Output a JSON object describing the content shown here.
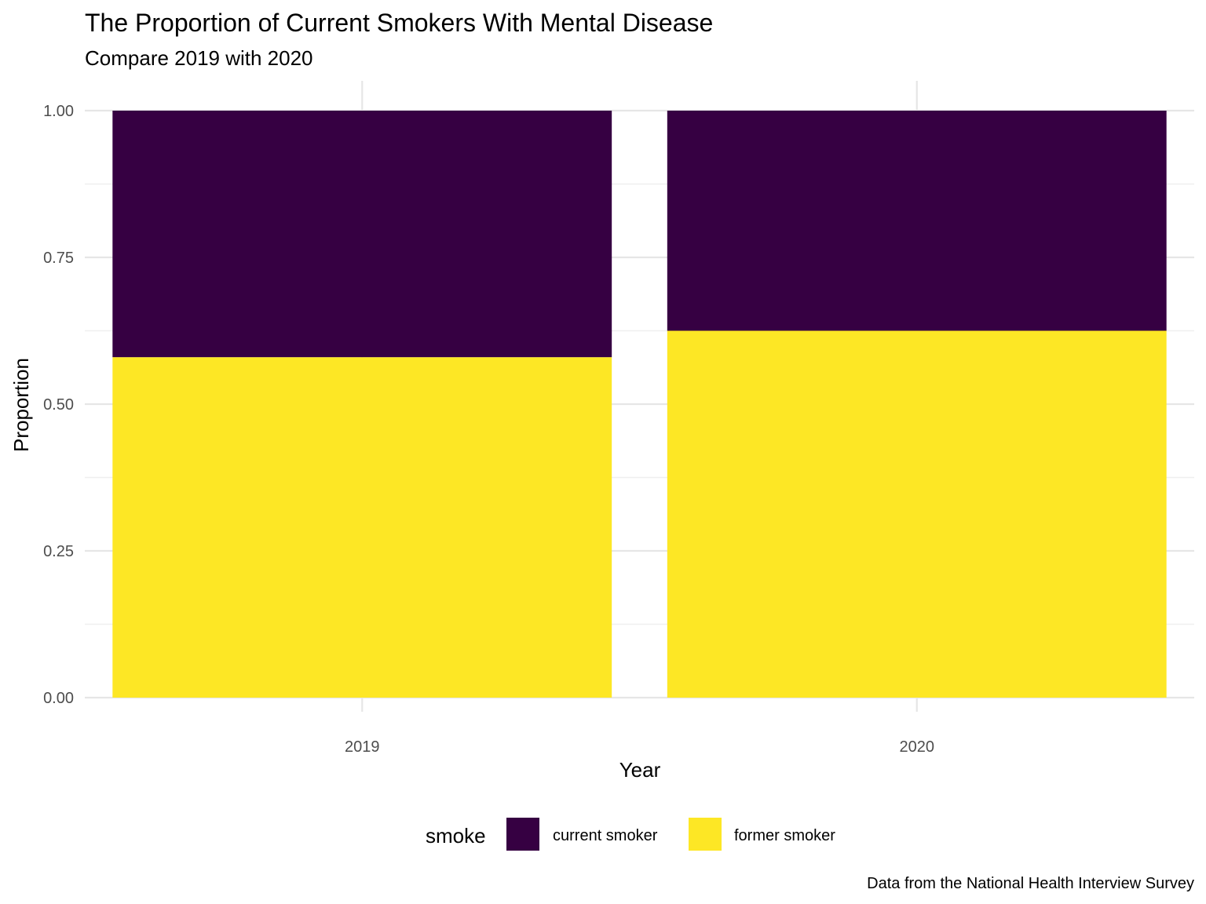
{
  "chart_data": {
    "type": "bar",
    "stacked": true,
    "normalized": true,
    "title": "The Proportion of Current Smokers With Mental Disease",
    "subtitle": "Compare 2019 with 2020",
    "xlabel": "Year",
    "ylabel": "Proportion",
    "caption": "Data from the National Health Interview Survey",
    "categories": [
      "2019",
      "2020"
    ],
    "series": [
      {
        "name": "current smoker",
        "color": "#360042",
        "values": [
          0.42,
          0.375
        ]
      },
      {
        "name": "former smoker",
        "color": "#FDE725",
        "values": [
          0.58,
          0.625
        ]
      }
    ],
    "ylim": [
      0,
      1
    ],
    "yticks": [
      "0.00",
      "0.25",
      "0.50",
      "0.75",
      "1.00"
    ],
    "grid": true,
    "legend": {
      "title": "smoke",
      "position": "bottom"
    }
  }
}
